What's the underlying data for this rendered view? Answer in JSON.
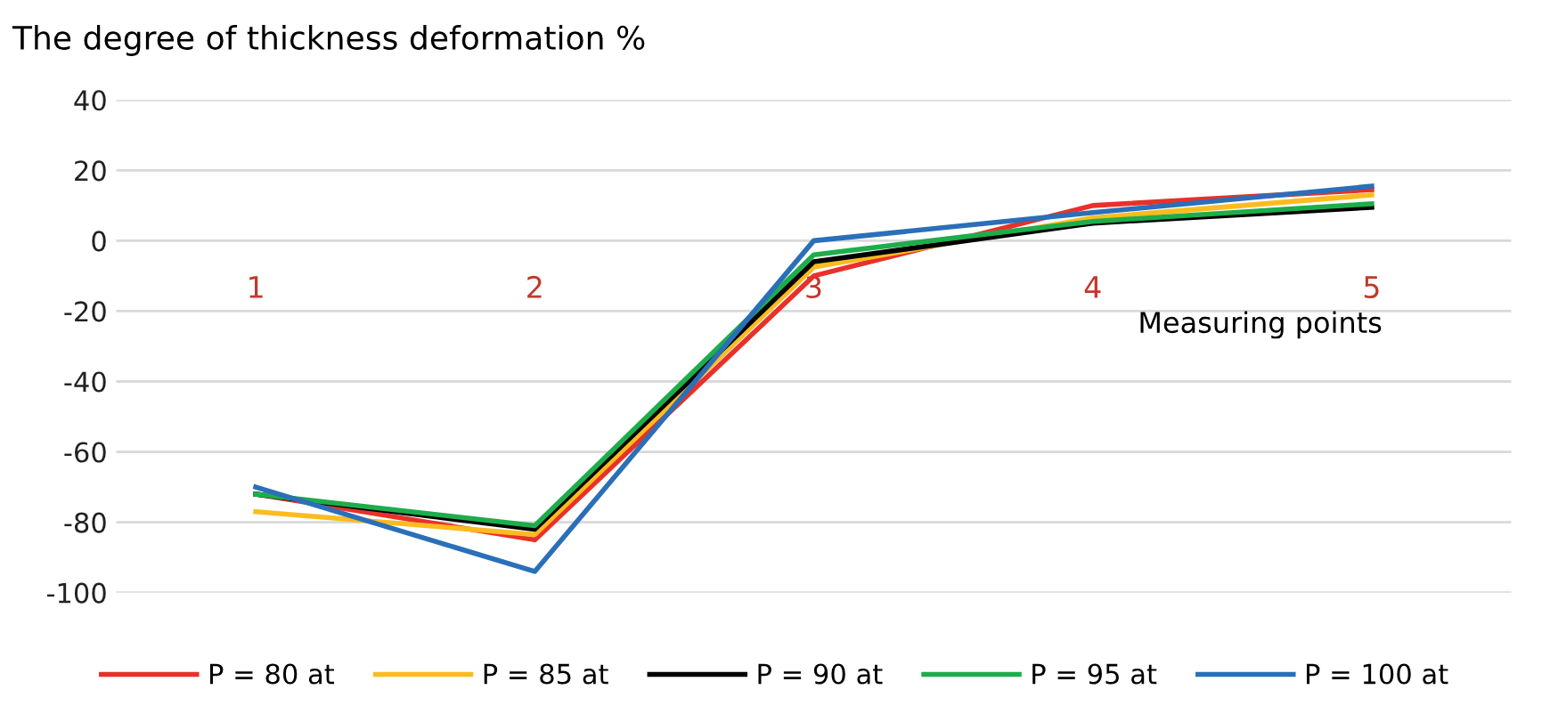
{
  "chart_data": {
    "type": "line",
    "title": "The degree of thickness deformation %",
    "xlabel": "Measuring points",
    "categories": [
      "1",
      "2",
      "3",
      "4",
      "5"
    ],
    "series": [
      {
        "name": "P = 80 at",
        "color": "#e8312a",
        "values": [
          -72,
          -85,
          -10,
          10,
          14.5
        ]
      },
      {
        "name": "P = 85 at",
        "color": "#fcbb1f",
        "values": [
          -77,
          -83.5,
          -7.5,
          6.5,
          13
        ]
      },
      {
        "name": "P = 90 at",
        "color": "#000000",
        "values": [
          -72,
          -82,
          -6,
          5,
          9.5
        ]
      },
      {
        "name": "P = 95 at",
        "color": "#1ead4b",
        "values": [
          -72,
          -81,
          -4,
          5.5,
          10.5
        ]
      },
      {
        "name": "P = 100 at",
        "color": "#2a6fb8",
        "values": [
          -70,
          -94,
          0,
          8,
          15.5
        ]
      }
    ],
    "ylim": [
      -100,
      40
    ],
    "yticks": [
      -100,
      -80,
      -60,
      -40,
      -20,
      0,
      20,
      40
    ],
    "grid": "y",
    "legend": "bottom",
    "marker": "none",
    "line_style": "solid"
  }
}
